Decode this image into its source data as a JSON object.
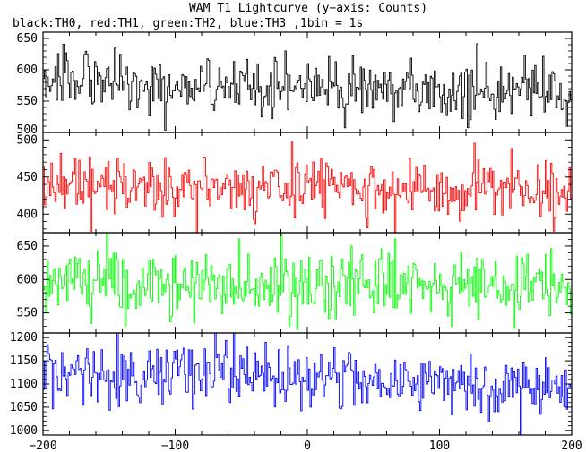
{
  "title": "WAM T1 Lightcurve (y−axis: Counts)",
  "subtitle": "black:TH0, red:TH1, green:TH2, blue:TH3 ,1bin = 1s",
  "chart_data": [
    {
      "type": "line",
      "name": "TH0",
      "color": "#000000",
      "x_range": [
        -200,
        200
      ],
      "ylim": [
        500,
        660
      ],
      "yticks": [
        500,
        550,
        600,
        650
      ],
      "bin_seconds": 1,
      "profile_x": [
        -200,
        -180,
        -160,
        -120,
        -80,
        -40,
        0,
        40,
        80,
        120,
        160,
        200
      ],
      "profile_mean": [
        588,
        592,
        580,
        573,
        574,
        570,
        572,
        570,
        568,
        568,
        567,
        565
      ],
      "noise_sd": 23
    },
    {
      "type": "line",
      "name": "TH1",
      "color": "#ff0000",
      "x_range": [
        -200,
        200
      ],
      "ylim": [
        375,
        510
      ],
      "yticks": [
        400,
        450,
        500
      ],
      "bin_seconds": 1,
      "profile_x": [
        -200,
        -100,
        0,
        100,
        200
      ],
      "profile_mean": [
        437,
        435,
        433,
        431,
        430
      ],
      "noise_sd": 19
    },
    {
      "type": "line",
      "name": "TH2",
      "color": "#00ff00",
      "x_range": [
        -200,
        200
      ],
      "ylim": [
        520,
        670
      ],
      "yticks": [
        550,
        600,
        650
      ],
      "bin_seconds": 1,
      "profile_x": [
        -200,
        -100,
        0,
        100,
        200
      ],
      "profile_mean": [
        596,
        595,
        594,
        593,
        592
      ],
      "noise_sd": 25
    },
    {
      "type": "line",
      "name": "TH3",
      "color": "#0000ff",
      "x_range": [
        -200,
        200
      ],
      "ylim": [
        990,
        1210
      ],
      "yticks": [
        1000,
        1050,
        1100,
        1150,
        1200
      ],
      "bin_seconds": 1,
      "profile_x": [
        -200,
        -150,
        -100,
        -50,
        0,
        50,
        100,
        150,
        200
      ],
      "profile_mean": [
        1120,
        1122,
        1125,
        1124,
        1112,
        1110,
        1105,
        1100,
        1092
      ],
      "noise_sd": 33
    }
  ],
  "x_axis": {
    "range": [
      -200,
      200
    ],
    "ticks": [
      -200,
      -100,
      0,
      100,
      200
    ],
    "tick_labels": [
      "−200",
      "−100",
      "0",
      "100",
      "200"
    ]
  }
}
